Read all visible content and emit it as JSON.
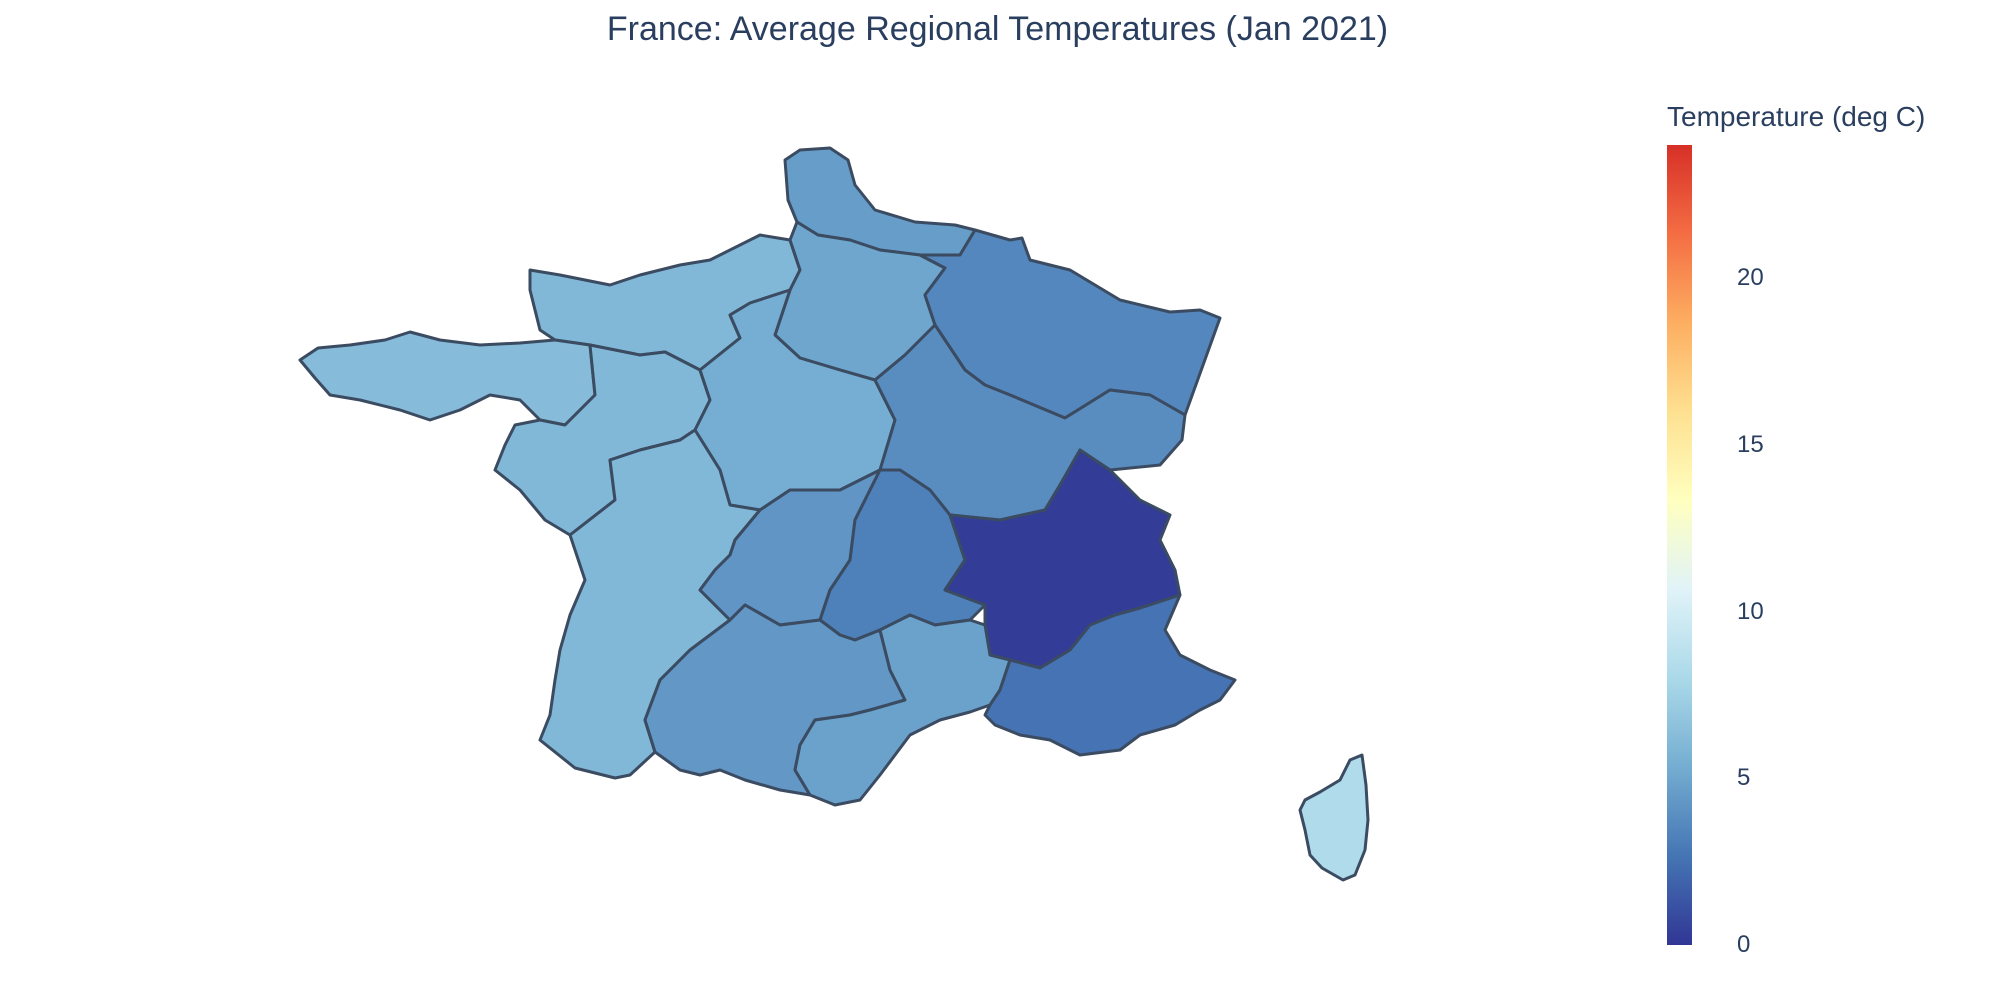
{
  "title": "France: Average Regional Temperatures (Jan 2021)",
  "colorbar": {
    "title": "Temperature (deg C)",
    "min": 0,
    "max": 24,
    "ticks": [
      "0",
      "5",
      "10",
      "15",
      "20"
    ],
    "colorscale": [
      "#313695",
      "#4575b4",
      "#74add1",
      "#abd9e9",
      "#e0f3f8",
      "#ffffbf",
      "#fee090",
      "#fdae61",
      "#f46d43",
      "#d73027"
    ]
  },
  "chart_data": {
    "type": "choropleth",
    "title": "France: Average Regional Temperatures (Jan 2021)",
    "colorbar_title": "Temperature (deg C)",
    "range": [
      0,
      24
    ],
    "regions": [
      {
        "id": "hauts-de-france",
        "value": 4.6
      },
      {
        "id": "normandie",
        "value": 6.0
      },
      {
        "id": "ile-de-france",
        "value": 5.0
      },
      {
        "id": "grand-est",
        "value": 3.5
      },
      {
        "id": "bretagne",
        "value": 6.2
      },
      {
        "id": "pays-de-la-loire",
        "value": 6.0
      },
      {
        "id": "centre-val-de-loire",
        "value": 5.4
      },
      {
        "id": "bourgogne-franche-comte",
        "value": 3.8
      },
      {
        "id": "nouvelle-aquitaine",
        "value": 6.0
      },
      {
        "id": "limousin",
        "value": 4.2
      },
      {
        "id": "auvergne",
        "value": 3.2
      },
      {
        "id": "rhone-alpes",
        "value": 0.3
      },
      {
        "id": "occitanie",
        "value": 4.3
      },
      {
        "id": "languedoc",
        "value": 4.8
      },
      {
        "id": "provence-alpes-cote-d-azur",
        "value": 2.6
      },
      {
        "id": "corse",
        "value": 8.2
      }
    ]
  }
}
